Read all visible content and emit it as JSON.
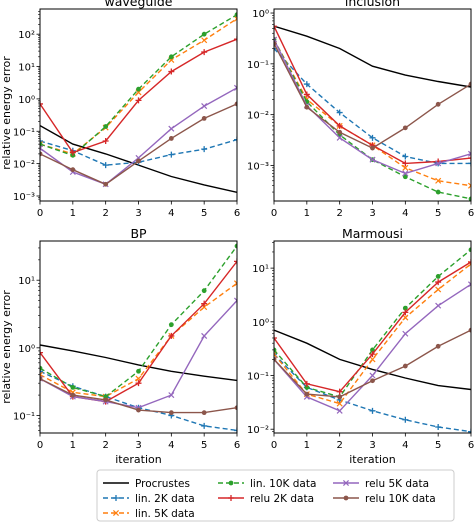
{
  "figure": {
    "ylabel": "relative energy error",
    "xlabel": "iteration"
  },
  "legend": {
    "location": "bottom-center",
    "columns": 3
  },
  "series_styles": [
    {
      "key": "procrustes",
      "label": "Procrustes",
      "color": "#000000",
      "dash": "",
      "marker": "none"
    },
    {
      "key": "lin2k",
      "label": "lin. 2K data",
      "color": "#1f77b4",
      "dash": "5,3",
      "marker": "plus"
    },
    {
      "key": "lin5k",
      "label": "lin. 5K data",
      "color": "#ff7f0e",
      "dash": "5,3",
      "marker": "x"
    },
    {
      "key": "lin10k",
      "label": "lin. 10K data",
      "color": "#2ca02c",
      "dash": "5,3",
      "marker": "dot"
    },
    {
      "key": "relu2k",
      "label": "relu 2K data",
      "color": "#d62728",
      "dash": "",
      "marker": "plus"
    },
    {
      "key": "relu5k",
      "label": "relu 5K data",
      "color": "#9467bd",
      "dash": "",
      "marker": "x"
    },
    {
      "key": "relu10k",
      "label": "relu 10K data",
      "color": "#8c564b",
      "dash": "",
      "marker": "dot"
    }
  ],
  "chart_data": [
    {
      "type": "line",
      "title": "waveguide",
      "xlabel": "",
      "ylabel": "relative energy error",
      "yscale": "log",
      "xlim": [
        0,
        6
      ],
      "ylim": [
        0.0007,
        600
      ],
      "xticks": [
        0,
        1,
        2,
        3,
        4,
        5,
        6
      ],
      "yticks": [
        {
          "value": 0.001,
          "label": "10⁻³"
        },
        {
          "value": 0.01,
          "label": "10⁻²"
        },
        {
          "value": 0.1,
          "label": "10⁻¹"
        },
        {
          "value": 1,
          "label": "10⁰"
        },
        {
          "value": 10,
          "label": "10¹"
        },
        {
          "value": 100,
          "label": "10²"
        }
      ],
      "x": [
        0,
        1,
        2,
        3,
        4,
        5,
        6
      ],
      "series": [
        {
          "key": "procrustes",
          "values": [
            0.15,
            0.04,
            0.02,
            0.009,
            0.004,
            0.0022,
            0.0013
          ]
        },
        {
          "key": "lin2k",
          "values": [
            0.05,
            0.025,
            0.009,
            0.011,
            0.019,
            0.028,
            0.055
          ]
        },
        {
          "key": "lin5k",
          "values": [
            0.04,
            0.02,
            0.13,
            1.6,
            16,
            65,
            300
          ]
        },
        {
          "key": "lin10k",
          "values": [
            0.04,
            0.018,
            0.14,
            2.0,
            20,
            100,
            400
          ]
        },
        {
          "key": "relu2k",
          "values": [
            0.7,
            0.022,
            0.05,
            0.9,
            7,
            28,
            70
          ]
        },
        {
          "key": "relu5k",
          "values": [
            0.03,
            0.0055,
            0.0023,
            0.015,
            0.12,
            0.6,
            2.2
          ]
        },
        {
          "key": "relu10k",
          "values": [
            0.02,
            0.0065,
            0.0023,
            0.012,
            0.06,
            0.25,
            0.7
          ]
        }
      ]
    },
    {
      "type": "line",
      "title": "inclusion",
      "xlabel": "",
      "ylabel": "",
      "yscale": "log",
      "xlim": [
        0,
        6
      ],
      "ylim": [
        0.0002,
        1.2
      ],
      "xticks": [
        0,
        1,
        2,
        3,
        4,
        5,
        6
      ],
      "yticks": [
        {
          "value": 0.001,
          "label": "10⁻³"
        },
        {
          "value": 0.01,
          "label": "10⁻²"
        },
        {
          "value": 0.1,
          "label": "10⁻¹"
        },
        {
          "value": 1,
          "label": "10⁰"
        }
      ],
      "x": [
        0,
        1,
        2,
        3,
        4,
        5,
        6
      ],
      "series": [
        {
          "key": "procrustes",
          "values": [
            0.55,
            0.35,
            0.2,
            0.09,
            0.06,
            0.045,
            0.035
          ]
        },
        {
          "key": "lin2k",
          "values": [
            0.2,
            0.04,
            0.011,
            0.0035,
            0.0015,
            0.0011,
            0.0011
          ]
        },
        {
          "key": "lin5k",
          "values": [
            0.3,
            0.02,
            0.006,
            0.0025,
            0.0009,
            0.0005,
            0.0004
          ]
        },
        {
          "key": "lin10k",
          "values": [
            0.3,
            0.018,
            0.004,
            0.0013,
            0.0006,
            0.0003,
            0.00022
          ]
        },
        {
          "key": "relu2k",
          "values": [
            0.55,
            0.025,
            0.006,
            0.0025,
            0.0011,
            0.0012,
            0.0014
          ]
        },
        {
          "key": "relu5k",
          "values": [
            0.3,
            0.015,
            0.0035,
            0.0013,
            0.0007,
            0.0011,
            0.0017
          ]
        },
        {
          "key": "relu10k",
          "values": [
            0.25,
            0.014,
            0.0045,
            0.0022,
            0.0055,
            0.016,
            0.04
          ]
        }
      ]
    },
    {
      "type": "line",
      "title": "BP",
      "xlabel": "iteration",
      "ylabel": "relative energy error",
      "yscale": "log",
      "xlim": [
        0,
        6
      ],
      "ylim": [
        0.055,
        38
      ],
      "xticks": [
        0,
        1,
        2,
        3,
        4,
        5,
        6
      ],
      "yticks": [
        {
          "value": 0.1,
          "label": "10⁻¹"
        },
        {
          "value": 1,
          "label": "10⁰"
        },
        {
          "value": 10,
          "label": "10¹"
        }
      ],
      "x": [
        0,
        1,
        2,
        3,
        4,
        5,
        6
      ],
      "series": [
        {
          "key": "procrustes",
          "values": [
            1.1,
            0.9,
            0.72,
            0.56,
            0.45,
            0.38,
            0.33
          ]
        },
        {
          "key": "lin2k",
          "values": [
            0.45,
            0.27,
            0.19,
            0.13,
            0.1,
            0.07,
            0.06
          ]
        },
        {
          "key": "lin5k",
          "values": [
            0.4,
            0.22,
            0.19,
            0.35,
            1.5,
            4,
            9
          ]
        },
        {
          "key": "lin10k",
          "values": [
            0.5,
            0.26,
            0.19,
            0.45,
            2.2,
            7,
            32
          ]
        },
        {
          "key": "relu2k",
          "values": [
            0.85,
            0.19,
            0.16,
            0.3,
            1.5,
            4.5,
            19
          ]
        },
        {
          "key": "relu5k",
          "values": [
            0.35,
            0.19,
            0.16,
            0.13,
            0.2,
            1.5,
            5
          ]
        },
        {
          "key": "relu10k",
          "values": [
            0.35,
            0.2,
            0.17,
            0.12,
            0.11,
            0.11,
            0.13
          ]
        }
      ]
    },
    {
      "type": "line",
      "title": "Marmousi",
      "xlabel": "iteration",
      "ylabel": "",
      "yscale": "log",
      "xlim": [
        0,
        6
      ],
      "ylim": [
        0.0085,
        32
      ],
      "xticks": [
        0,
        1,
        2,
        3,
        4,
        5,
        6
      ],
      "yticks": [
        {
          "value": 0.01,
          "label": "10⁻²"
        },
        {
          "value": 0.1,
          "label": "10⁻¹"
        },
        {
          "value": 1,
          "label": "10⁰"
        },
        {
          "value": 10,
          "label": "10¹"
        }
      ],
      "x": [
        0,
        1,
        2,
        3,
        4,
        5,
        6
      ],
      "series": [
        {
          "key": "procrustes",
          "values": [
            0.7,
            0.4,
            0.2,
            0.13,
            0.09,
            0.065,
            0.055
          ]
        },
        {
          "key": "lin2k",
          "values": [
            0.25,
            0.06,
            0.035,
            0.022,
            0.015,
            0.011,
            0.009
          ]
        },
        {
          "key": "lin5k",
          "values": [
            0.25,
            0.045,
            0.03,
            0.2,
            1.2,
            4,
            12
          ]
        },
        {
          "key": "lin10k",
          "values": [
            0.3,
            0.06,
            0.04,
            0.3,
            1.8,
            7,
            22
          ]
        },
        {
          "key": "relu2k",
          "values": [
            0.5,
            0.07,
            0.05,
            0.25,
            1.5,
            5.5,
            13
          ]
        },
        {
          "key": "relu5k",
          "values": [
            0.2,
            0.04,
            0.022,
            0.1,
            0.6,
            2,
            5
          ]
        },
        {
          "key": "relu10k",
          "values": [
            0.2,
            0.045,
            0.04,
            0.08,
            0.15,
            0.35,
            0.7
          ]
        }
      ]
    }
  ]
}
